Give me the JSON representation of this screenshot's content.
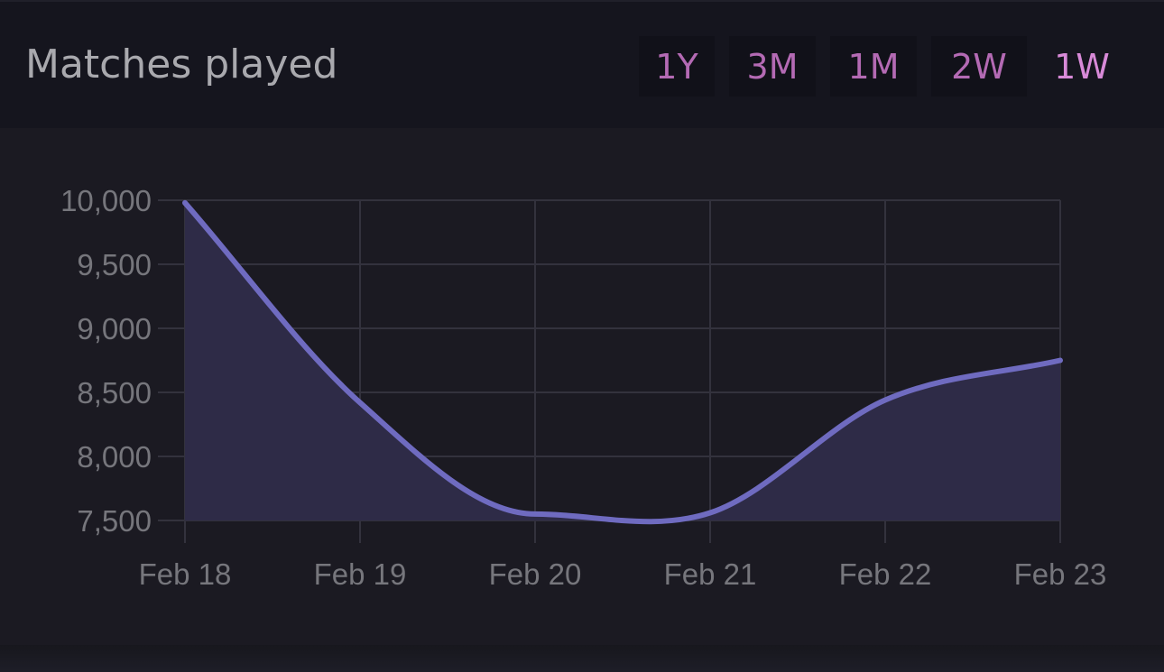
{
  "header": {
    "title": "Matches played"
  },
  "range_selector": {
    "options": [
      {
        "label": "1Y",
        "active": false
      },
      {
        "label": "3M",
        "active": false
      },
      {
        "label": "1M",
        "active": false
      },
      {
        "label": "2W",
        "active": false
      },
      {
        "label": "1W",
        "active": true
      }
    ]
  },
  "colors": {
    "line": "#6f6bc0",
    "fill": "#2e2b47",
    "grid": "#33323d",
    "tick_text": "#76767c",
    "range_text": "#b46ab4",
    "range_active_text": "#d88ad8"
  },
  "chart_data": {
    "type": "area",
    "title": "Matches played",
    "categories": [
      "Feb 18",
      "Feb 19",
      "Feb 20",
      "Feb 21",
      "Feb 22",
      "Feb 23"
    ],
    "series": [
      {
        "name": "Matches played",
        "values": [
          9980,
          8420,
          7550,
          7560,
          8440,
          8750
        ]
      }
    ],
    "xlabel": "",
    "ylabel": "",
    "yticks": [
      7500,
      8000,
      8500,
      9000,
      9500,
      10000
    ],
    "ytick_labels": [
      "7,500",
      "8,000",
      "8,500",
      "9,000",
      "9,500",
      "10,000"
    ],
    "ylim": [
      7500,
      10000
    ],
    "grid": true,
    "legend": false,
    "smooth": true
  }
}
